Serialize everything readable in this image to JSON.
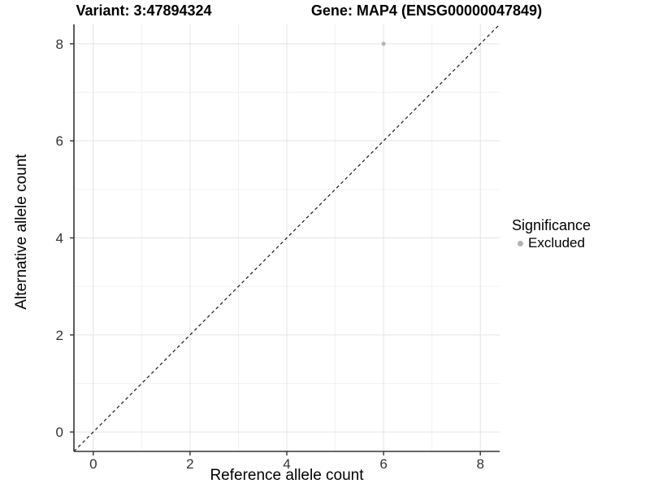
{
  "figure": {
    "title_left": "Variant: 3:47894324",
    "title_right": "Gene: MAP4 (ENSG00000047849)"
  },
  "chart_data": {
    "type": "scatter",
    "title_left": "Variant: 3:47894324",
    "title_right": "Gene: MAP4 (ENSG00000047849)",
    "xlabel": "Reference allele count",
    "ylabel": "Alternative allele count",
    "xlim": [
      -0.4,
      8.4
    ],
    "ylim": [
      -0.4,
      8.4
    ],
    "x_ticks": [
      0,
      2,
      4,
      6,
      8
    ],
    "y_ticks": [
      0,
      2,
      4,
      6,
      8
    ],
    "x_minor_ticks": [
      1,
      3,
      5,
      7
    ],
    "y_minor_ticks": [
      1,
      3,
      5,
      7
    ],
    "grid": "major+minor",
    "series": [
      {
        "name": "Excluded",
        "color": "#b3b3b3",
        "points": [
          {
            "x": 6,
            "y": 8
          }
        ],
        "point_radius": 2.5
      }
    ],
    "reference_line": {
      "kind": "identity",
      "style": "dashed",
      "color": "#1a1a1a",
      "from": [
        -0.4,
        -0.4
      ],
      "to": [
        8.4,
        8.4
      ]
    },
    "legend": {
      "title": "Significance",
      "position": "right",
      "items": [
        {
          "label": "Excluded",
          "color": "#b3b3b3"
        }
      ]
    },
    "colors": {
      "grid_major": "#e4e4e4",
      "grid_minor": "#f2f2f2",
      "axis_line": "#333333",
      "tick_mark": "#333333",
      "tick_text": "#333333"
    }
  }
}
